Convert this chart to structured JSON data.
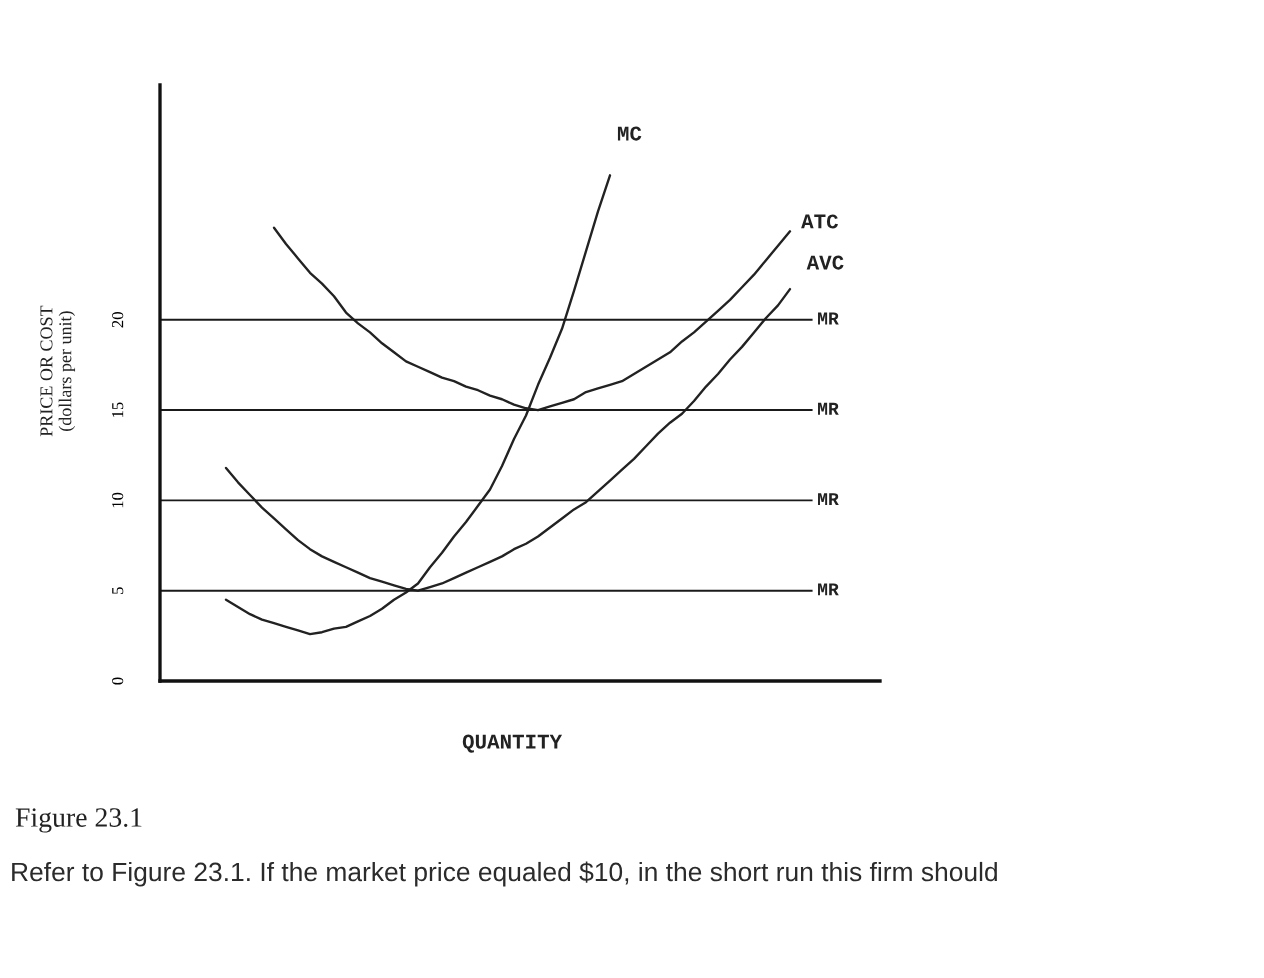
{
  "chart_data": {
    "type": "line",
    "xlabel": "QUANTITY",
    "ylabel": "PRICE OR COST\n(dollars per unit)",
    "categories": [
      null,
      null,
      null,
      null,
      null,
      null,
      null,
      null,
      null,
      null,
      null,
      null,
      null,
      null,
      null,
      null,
      null,
      null,
      null,
      null,
      null,
      null,
      null,
      null,
      null,
      null,
      null,
      null,
      null,
      null,
      null,
      null,
      null,
      null,
      null,
      null,
      null,
      null,
      null,
      null,
      null,
      null,
      null,
      null,
      null,
      null,
      null,
      null,
      null,
      null,
      null,
      null,
      null,
      null,
      null,
      null,
      null,
      null,
      null,
      null
    ],
    "series": [
      {
        "name": "MC",
        "color": "#222222",
        "values": [
          null,
          null,
          null,
          null,
          null,
          4.5,
          4.1,
          3.7,
          3.4,
          3.2,
          3.0,
          2.8,
          2.6,
          2.7,
          2.9,
          3.0,
          3.3,
          3.6,
          4.0,
          4.5,
          4.9,
          5.4,
          6.3,
          7.1,
          8.0,
          8.8,
          9.7,
          10.6,
          11.9,
          13.4,
          14.7,
          16.4,
          17.9,
          19.5,
          21.6,
          23.8,
          26.0,
          28.0,
          null,
          null,
          null,
          null,
          null,
          null,
          null,
          null,
          null,
          null,
          null,
          null,
          null,
          null,
          null,
          null,
          null,
          null,
          null,
          null,
          null,
          null
        ]
      },
      {
        "name": "ATC",
        "color": "#222222",
        "values": [
          null,
          null,
          null,
          null,
          null,
          null,
          null,
          null,
          null,
          25.1,
          24.2,
          23.4,
          22.6,
          22.0,
          21.3,
          20.4,
          19.8,
          19.3,
          18.7,
          18.2,
          17.7,
          17.4,
          17.1,
          16.8,
          16.6,
          16.3,
          16.1,
          15.8,
          15.6,
          15.3,
          15.1,
          15.0,
          15.2,
          15.4,
          15.6,
          16.0,
          16.2,
          16.4,
          16.6,
          17.0,
          17.4,
          17.8,
          18.2,
          18.8,
          19.3,
          19.9,
          20.5,
          21.1,
          21.8,
          22.5,
          23.3,
          24.1,
          24.9,
          null,
          null,
          null,
          null,
          null,
          null,
          null
        ]
      },
      {
        "name": "AVC",
        "color": "#222222",
        "values": [
          null,
          null,
          null,
          null,
          null,
          11.8,
          11.0,
          10.3,
          9.6,
          9.0,
          8.4,
          7.8,
          7.3,
          6.9,
          6.6,
          6.3,
          6.0,
          5.7,
          5.5,
          5.3,
          5.1,
          5.0,
          5.2,
          5.4,
          5.7,
          6.0,
          6.3,
          6.6,
          6.9,
          7.3,
          7.6,
          8.0,
          8.5,
          9.0,
          9.5,
          9.9,
          10.5,
          11.1,
          11.7,
          12.3,
          13.0,
          13.7,
          14.3,
          14.8,
          15.5,
          16.3,
          17.0,
          17.8,
          18.5,
          19.3,
          20.1,
          20.8,
          21.7,
          null,
          null,
          null,
          null,
          null,
          null,
          null
        ]
      }
    ],
    "ylim": [
      0,
      33
    ],
    "yticks": [
      0,
      5,
      10,
      15,
      20
    ],
    "tick_labels": "y",
    "ref_lines": [
      {
        "axis": "y",
        "value": 20,
        "label": "MR"
      },
      {
        "axis": "y",
        "value": 15,
        "label": "MR"
      },
      {
        "axis": "y",
        "value": 10,
        "label": "MR"
      },
      {
        "axis": "y",
        "value": 5,
        "label": "MR"
      }
    ],
    "annotations": [
      "Figure 23.1",
      "Refer to Figure 23.1. If the market price equaled $10, in the short run this firm should"
    ]
  }
}
